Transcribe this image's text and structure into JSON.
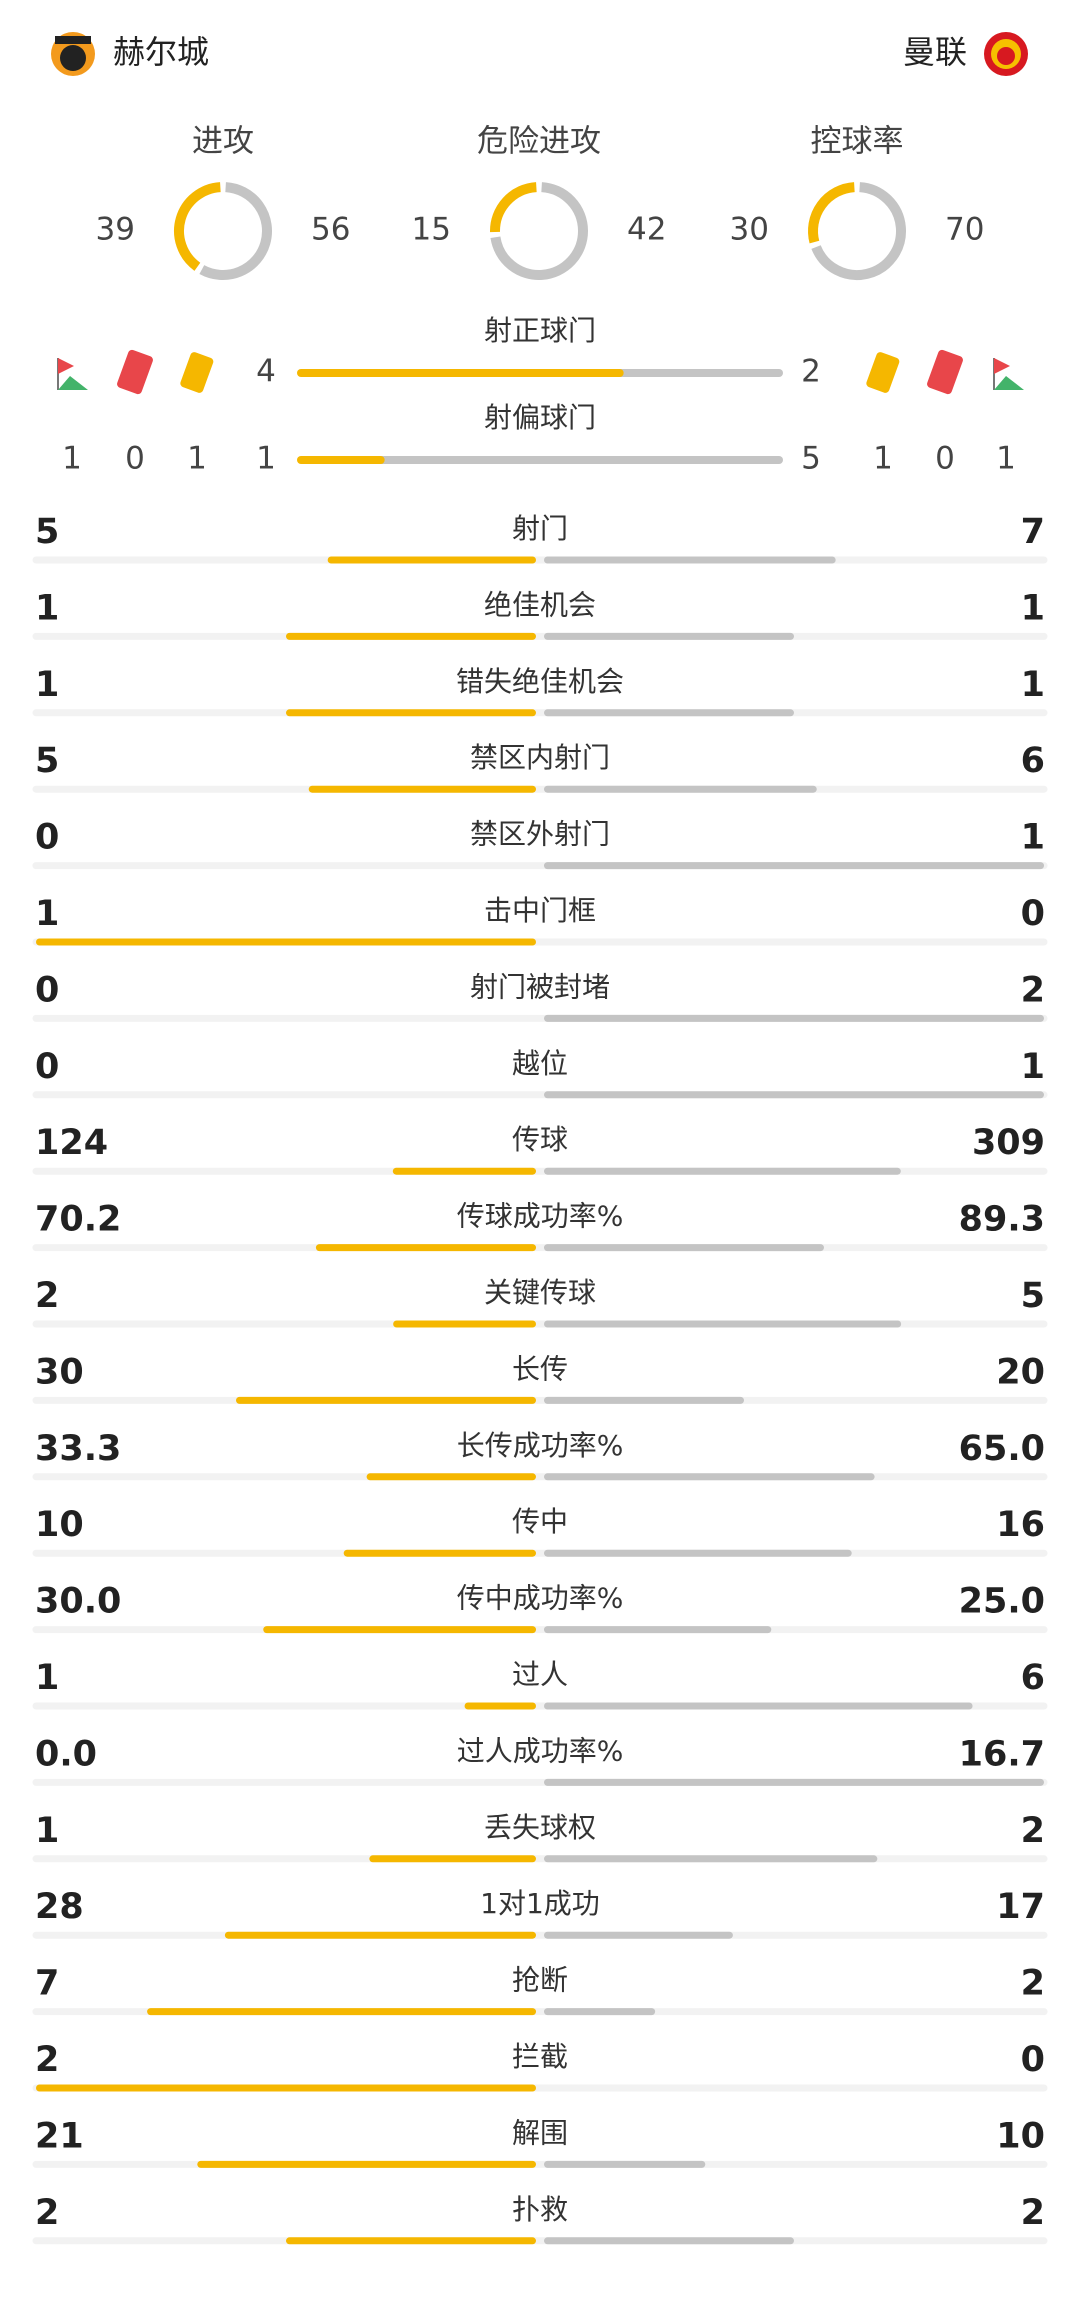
{
  "header": {
    "home": "赫尔城",
    "away": "曼联"
  },
  "summary": [
    {
      "label": "进攻",
      "home": "39",
      "away": "56"
    },
    {
      "label": "危险进攻",
      "home": "15",
      "away": "42"
    },
    {
      "label": "控球率",
      "home": "30",
      "away": "70"
    }
  ],
  "shots": [
    {
      "label": "射正球门",
      "home": "4",
      "away": "2"
    },
    {
      "label": "射偏球门",
      "home": "1",
      "away": "5"
    }
  ],
  "discipline": {
    "home": {
      "corners": "1",
      "red_cards": "0",
      "yellow_cards": "1"
    },
    "away": {
      "yellow_cards": "1",
      "red_cards": "0",
      "corners": "1"
    }
  },
  "stats": [
    {
      "label": "射门",
      "home": "5",
      "away": "7"
    },
    {
      "label": "绝佳机会",
      "home": "1",
      "away": "1"
    },
    {
      "label": "错失绝佳机会",
      "home": "1",
      "away": "1"
    },
    {
      "label": "禁区内射门",
      "home": "5",
      "away": "6"
    },
    {
      "label": "禁区外射门",
      "home": "0",
      "away": "1"
    },
    {
      "label": "击中门框",
      "home": "1",
      "away": "0"
    },
    {
      "label": "射门被封堵",
      "home": "0",
      "away": "2"
    },
    {
      "label": "越位",
      "home": "0",
      "away": "1"
    },
    {
      "label": "传球",
      "home": "124",
      "away": "309"
    },
    {
      "label": "传球成功率%",
      "home": "70.2",
      "away": "89.3"
    },
    {
      "label": "关键传球",
      "home": "2",
      "away": "5"
    },
    {
      "label": "长传",
      "home": "30",
      "away": "20"
    },
    {
      "label": "长传成功率%",
      "home": "33.3",
      "away": "65.0"
    },
    {
      "label": "传中",
      "home": "10",
      "away": "16"
    },
    {
      "label": "传中成功率%",
      "home": "30.0",
      "away": "25.0"
    },
    {
      "label": "过人",
      "home": "1",
      "away": "6"
    },
    {
      "label": "过人成功率%",
      "home": "0.0",
      "away": "16.7"
    },
    {
      "label": "丢失球权",
      "home": "1",
      "away": "2"
    },
    {
      "label": "1对1成功",
      "home": "28",
      "away": "17"
    },
    {
      "label": "抢断",
      "home": "7",
      "away": "2"
    },
    {
      "label": "拦截",
      "home": "2",
      "away": "0"
    },
    {
      "label": "解围",
      "home": "21",
      "away": "10"
    },
    {
      "label": "扑救",
      "home": "2",
      "away": "2"
    }
  ]
}
